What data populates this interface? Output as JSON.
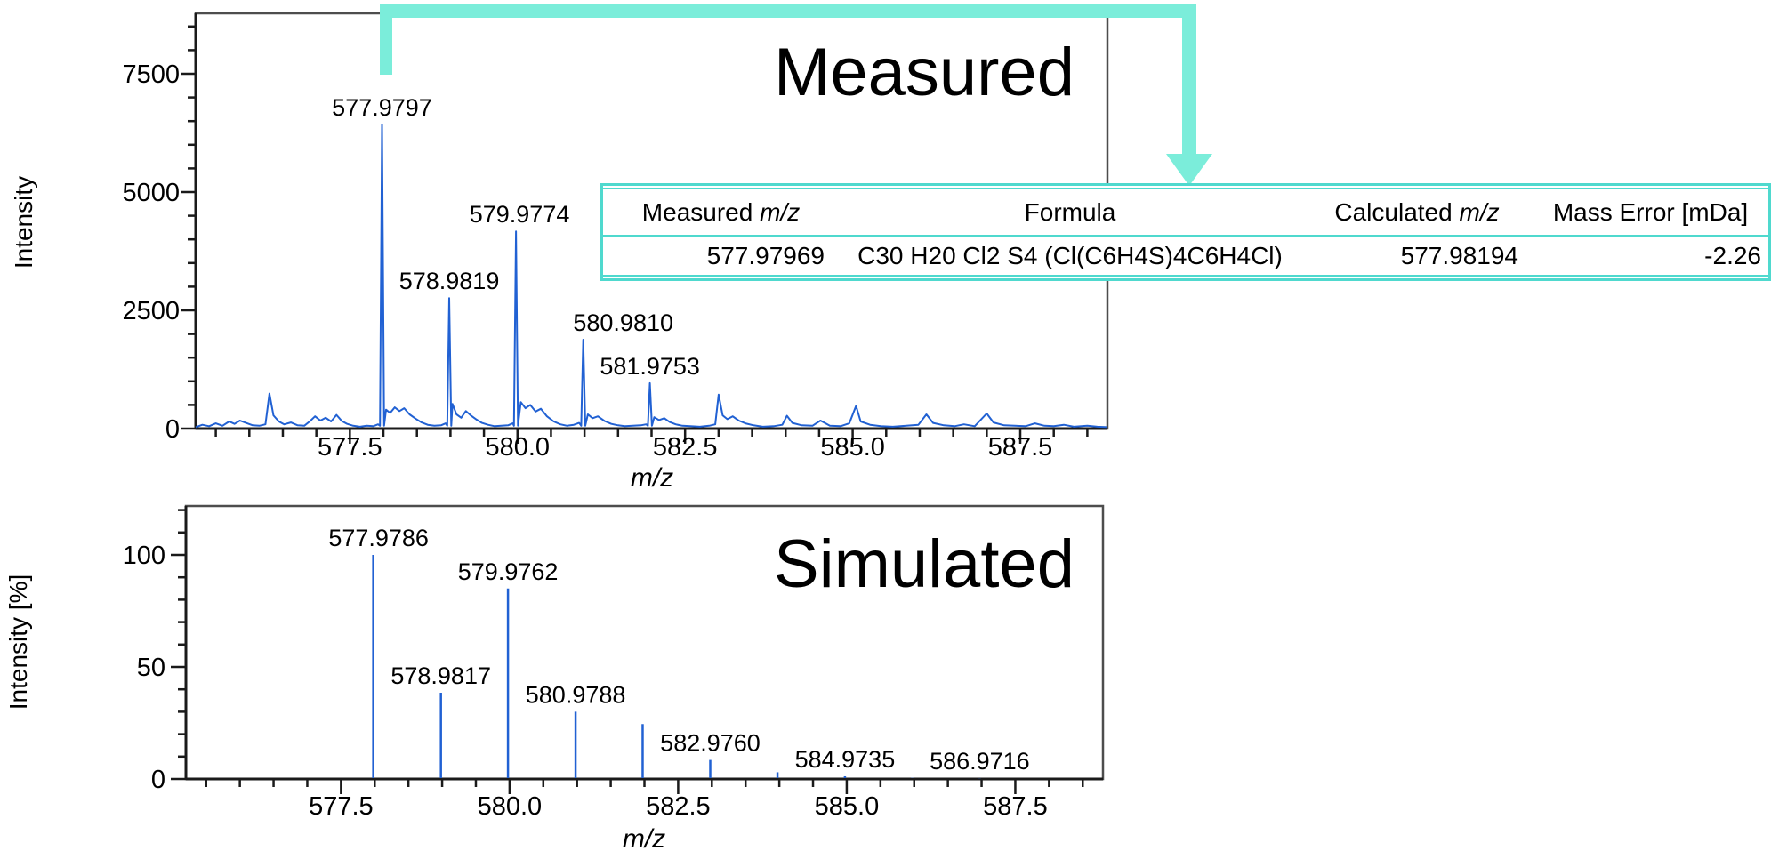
{
  "colors": {
    "spectrum_blue": "#2161d3",
    "frame_gray": "#4d4d4d",
    "tick_black": "#1a1a1a",
    "text_black": "#000000",
    "arrow_turquoise": "#7bedda",
    "table_border_turquoise": "#4fd9ce",
    "background": "#ffffff"
  },
  "table": {
    "headers": [
      "Measured m/z",
      "Formula",
      "Calculated m/z",
      "Mass Error [mDa]"
    ],
    "row": [
      "577.97969",
      "C30 H20 Cl2 S4 (Cl(C6H4S)4C6H4Cl)",
      "577.98194",
      "-2.26"
    ]
  },
  "chart_data": [
    {
      "id": "measured",
      "type": "line",
      "title": "Measured",
      "xlabel": "m/z",
      "ylabel": "Intensity",
      "xlim": [
        575.2,
        588.8
      ],
      "ylim": [
        0,
        8780
      ],
      "xticks": [
        577.5,
        580.0,
        582.5,
        585.0,
        587.5
      ],
      "xtick_labels": [
        "577.5",
        "580.0",
        "582.5",
        "585.0",
        "587.5"
      ],
      "yticks": [
        0,
        2500,
        5000,
        7500
      ],
      "ytick_labels": [
        "0",
        "2500",
        "5000",
        "7500"
      ],
      "minor_x_step": 0.5,
      "minor_y_step": 500,
      "grid": false,
      "legend": null,
      "peaks": [
        {
          "mz": 577.9797,
          "intensity": 6430,
          "label": "577.9797",
          "label_dx": 0
        },
        {
          "mz": 578.9819,
          "intensity": 2760,
          "label": "578.9819",
          "label_dx": 0
        },
        {
          "mz": 579.9774,
          "intensity": 4170,
          "label": "579.9774",
          "label_dx": 4
        },
        {
          "mz": 580.981,
          "intensity": 1880,
          "label": "580.9810",
          "label_dx": 45
        },
        {
          "mz": 581.9753,
          "intensity": 960,
          "label": "581.9753",
          "label_dx": 0
        }
      ],
      "noise_trace": [
        [
          575.2,
          30
        ],
        [
          575.3,
          80
        ],
        [
          575.4,
          50
        ],
        [
          575.5,
          110
        ],
        [
          575.6,
          60
        ],
        [
          575.7,
          150
        ],
        [
          575.78,
          100
        ],
        [
          575.86,
          170
        ],
        [
          575.95,
          120
        ],
        [
          576.05,
          70
        ],
        [
          576.15,
          60
        ],
        [
          576.24,
          90
        ],
        [
          576.3,
          740
        ],
        [
          576.36,
          280
        ],
        [
          576.44,
          150
        ],
        [
          576.52,
          90
        ],
        [
          576.62,
          130
        ],
        [
          576.72,
          70
        ],
        [
          576.82,
          60
        ],
        [
          576.9,
          150
        ],
        [
          576.98,
          260
        ],
        [
          577.06,
          170
        ],
        [
          577.14,
          230
        ],
        [
          577.22,
          150
        ],
        [
          577.3,
          290
        ],
        [
          577.38,
          160
        ],
        [
          577.46,
          100
        ],
        [
          577.55,
          60
        ],
        [
          577.65,
          40
        ],
        [
          577.75,
          60
        ],
        [
          577.85,
          50
        ],
        [
          577.92,
          90
        ],
        [
          578.04,
          400
        ],
        [
          578.1,
          330
        ],
        [
          578.17,
          450
        ],
        [
          578.24,
          370
        ],
        [
          578.31,
          430
        ],
        [
          578.39,
          300
        ],
        [
          578.48,
          210
        ],
        [
          578.57,
          130
        ],
        [
          578.66,
          80
        ],
        [
          578.76,
          60
        ],
        [
          578.86,
          70
        ],
        [
          578.93,
          110
        ],
        [
          579.03,
          520
        ],
        [
          579.09,
          300
        ],
        [
          579.16,
          230
        ],
        [
          579.23,
          370
        ],
        [
          579.31,
          270
        ],
        [
          579.39,
          190
        ],
        [
          579.47,
          120
        ],
        [
          579.56,
          80
        ],
        [
          579.66,
          50
        ],
        [
          579.76,
          60
        ],
        [
          579.86,
          70
        ],
        [
          579.93,
          110
        ],
        [
          580.05,
          560
        ],
        [
          580.12,
          430
        ],
        [
          580.19,
          500
        ],
        [
          580.27,
          360
        ],
        [
          580.35,
          420
        ],
        [
          580.44,
          260
        ],
        [
          580.54,
          150
        ],
        [
          580.64,
          90
        ],
        [
          580.74,
          60
        ],
        [
          580.84,
          80
        ],
        [
          580.92,
          120
        ],
        [
          581.05,
          300
        ],
        [
          581.12,
          220
        ],
        [
          581.2,
          260
        ],
        [
          581.3,
          160
        ],
        [
          581.4,
          100
        ],
        [
          581.5,
          70
        ],
        [
          581.6,
          50
        ],
        [
          581.72,
          60
        ],
        [
          581.84,
          70
        ],
        [
          581.92,
          90
        ],
        [
          582.04,
          240
        ],
        [
          582.11,
          180
        ],
        [
          582.19,
          220
        ],
        [
          582.27,
          140
        ],
        [
          582.36,
          90
        ],
        [
          582.46,
          60
        ],
        [
          582.58,
          50
        ],
        [
          582.72,
          40
        ],
        [
          582.86,
          60
        ],
        [
          582.95,
          90
        ],
        [
          583.0,
          720
        ],
        [
          583.06,
          280
        ],
        [
          583.13,
          200
        ],
        [
          583.21,
          260
        ],
        [
          583.3,
          170
        ],
        [
          583.4,
          110
        ],
        [
          583.52,
          70
        ],
        [
          583.66,
          40
        ],
        [
          583.82,
          50
        ],
        [
          583.95,
          80
        ],
        [
          584.02,
          270
        ],
        [
          584.1,
          120
        ],
        [
          584.24,
          70
        ],
        [
          584.4,
          60
        ],
        [
          584.52,
          170
        ],
        [
          584.66,
          60
        ],
        [
          584.82,
          50
        ],
        [
          584.95,
          110
        ],
        [
          585.05,
          480
        ],
        [
          585.12,
          150
        ],
        [
          585.26,
          80
        ],
        [
          585.42,
          50
        ],
        [
          585.6,
          40
        ],
        [
          585.8,
          60
        ],
        [
          585.98,
          80
        ],
        [
          586.1,
          300
        ],
        [
          586.2,
          120
        ],
        [
          586.36,
          70
        ],
        [
          586.52,
          50
        ],
        [
          586.66,
          90
        ],
        [
          586.82,
          50
        ],
        [
          587.0,
          320
        ],
        [
          587.1,
          130
        ],
        [
          587.26,
          70
        ],
        [
          587.42,
          60
        ],
        [
          587.58,
          50
        ],
        [
          587.72,
          110
        ],
        [
          587.86,
          60
        ],
        [
          588.0,
          50
        ],
        [
          588.15,
          80
        ],
        [
          588.3,
          40
        ],
        [
          588.5,
          60
        ],
        [
          588.65,
          40
        ],
        [
          588.8,
          30
        ]
      ]
    },
    {
      "id": "simulated",
      "type": "stick",
      "title": "Simulated",
      "xlabel": "m/z",
      "ylabel": "Intensity [%]",
      "xlim": [
        575.2,
        588.8
      ],
      "ylim": [
        0,
        122
      ],
      "xticks": [
        577.5,
        580.0,
        582.5,
        585.0,
        587.5
      ],
      "xtick_labels": [
        "577.5",
        "580.0",
        "582.5",
        "585.0",
        "587.5"
      ],
      "yticks": [
        0,
        50,
        100
      ],
      "ytick_labels": [
        "0",
        "50",
        "100"
      ],
      "minor_x_step": 0.5,
      "minor_y_step": 10,
      "grid": false,
      "legend": null,
      "peaks": [
        {
          "mz": 577.9786,
          "intensity": 100,
          "label": "577.9786",
          "label_dx": 6
        },
        {
          "mz": 578.9817,
          "intensity": 38.5,
          "label": "578.9817",
          "label_dx": 0
        },
        {
          "mz": 579.9762,
          "intensity": 85,
          "label": "579.9762",
          "label_dx": 0
        },
        {
          "mz": 580.9788,
          "intensity": 30,
          "label": "580.9788",
          "label_dx": 0
        },
        {
          "mz": 581.9733,
          "intensity": 24.5,
          "label": null,
          "label_dx": 0
        },
        {
          "mz": 582.976,
          "intensity": 8.5,
          "label": "582.9760",
          "label_dx": 0
        },
        {
          "mz": 583.9731,
          "intensity": 3,
          "label": null,
          "label_dx": 0
        },
        {
          "mz": 584.9735,
          "intensity": 1.2,
          "label": "584.9735",
          "label_dx": 0
        },
        {
          "mz": 585.9705,
          "intensity": 0.5,
          "label": null,
          "label_dx": 0
        },
        {
          "mz": 586.9716,
          "intensity": 0.3,
          "label": "586.9716",
          "label_dx": 0
        }
      ]
    }
  ],
  "annotations": {
    "measured_title": "Measured",
    "simulated_title": "Simulated"
  }
}
